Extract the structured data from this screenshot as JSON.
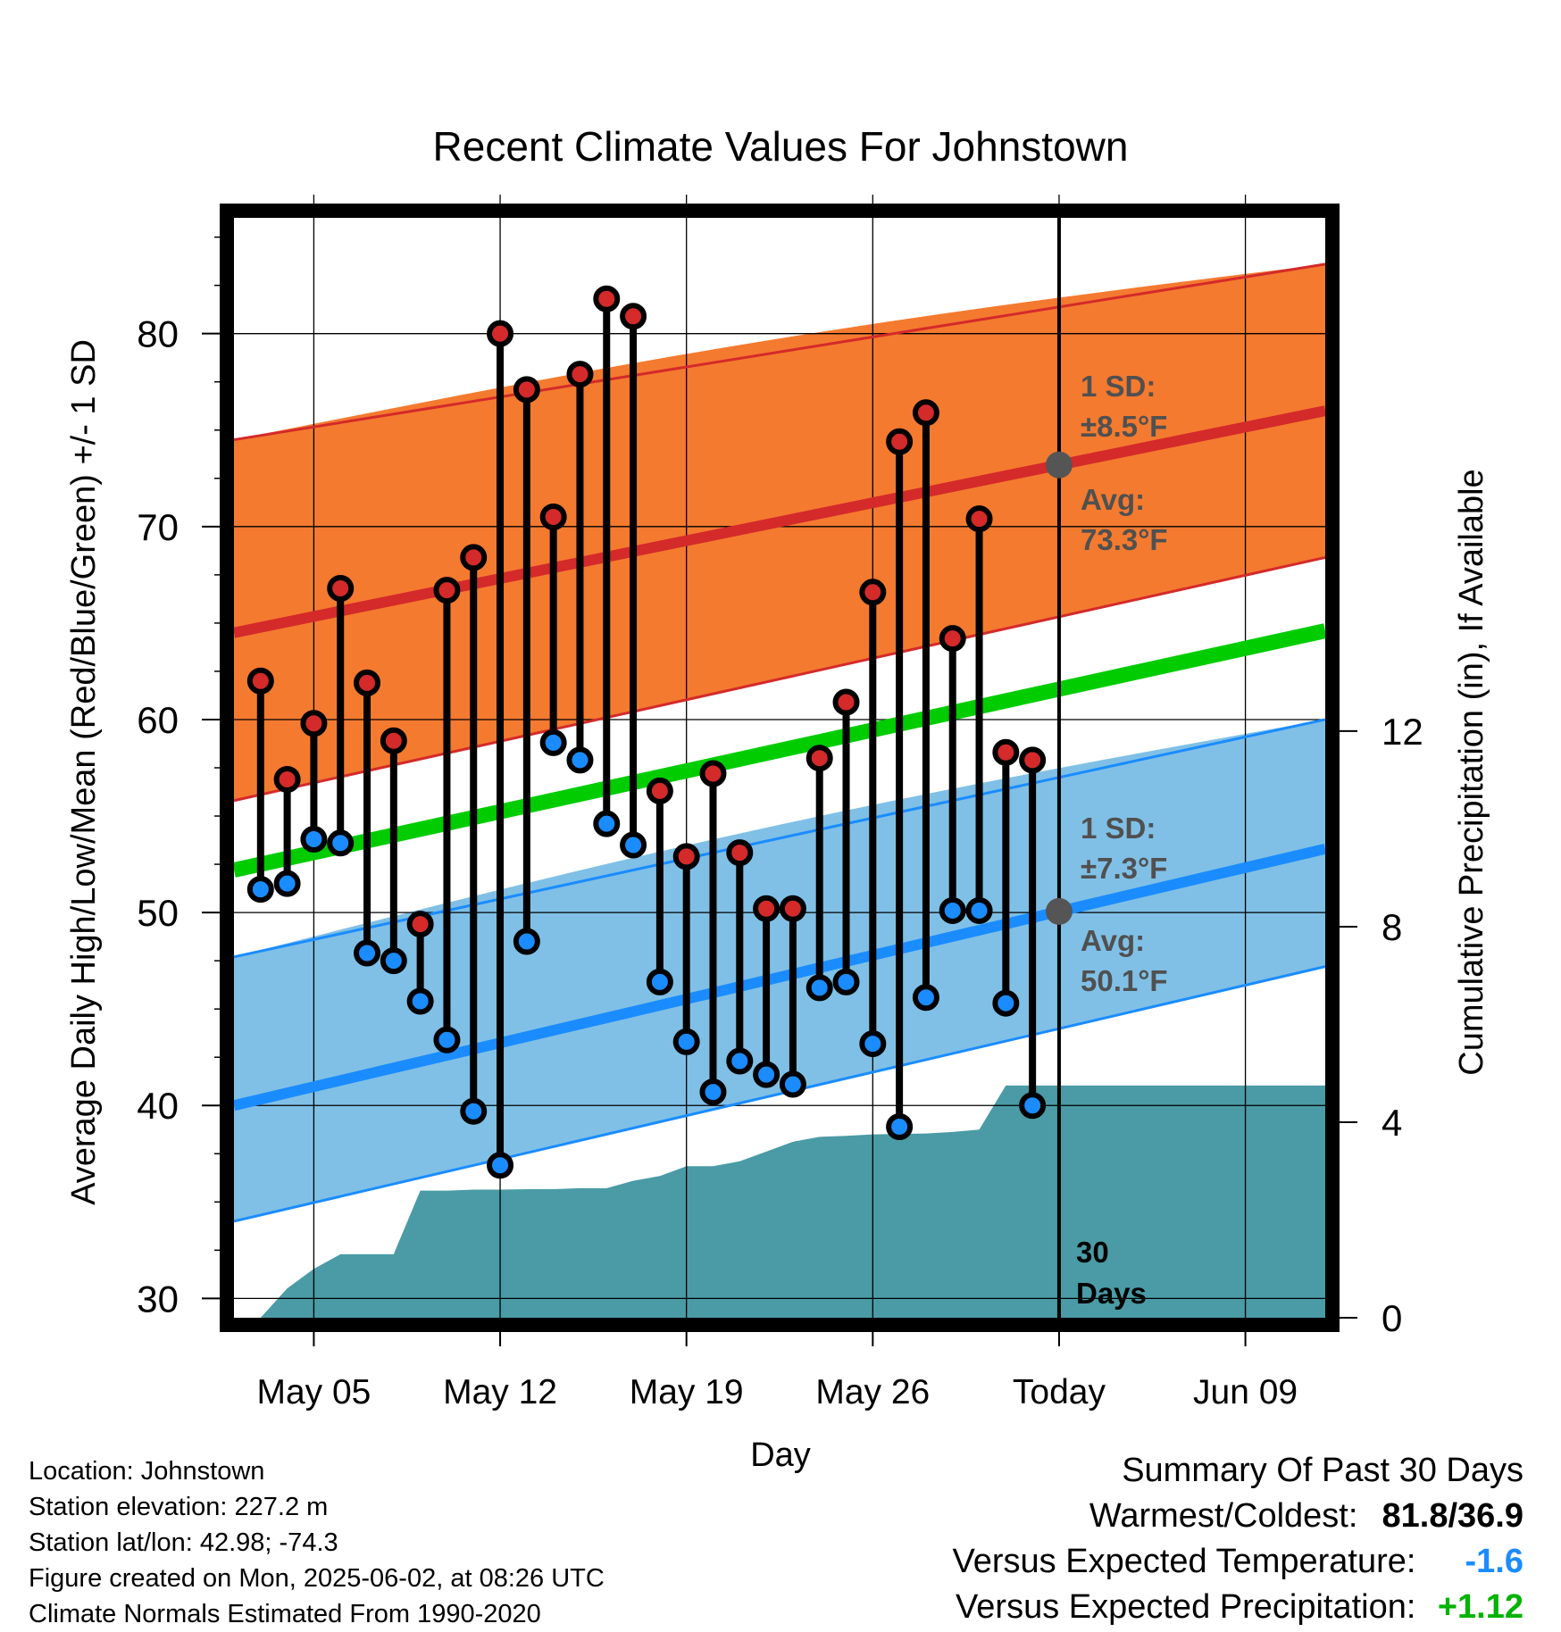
{
  "title": "Recent Climate Values For Johnstown",
  "y_axis_left_label": "Average Daily High/Low/Mean (Red/Blue/Green) +/- 1 SD",
  "y_axis_right_label": "Cumulative Precipitation (in), If Available",
  "x_axis_label": "Day",
  "annotations": {
    "high_sd_line1": "1 SD:",
    "high_sd_line2": "±8.5°F",
    "high_avg_line1": "Avg:",
    "high_avg_line2": "73.3°F",
    "low_sd_line1": "1 SD:",
    "low_sd_line2": "±7.3°F",
    "low_avg_line1": "Avg:",
    "low_avg_line2": "50.1°F",
    "days_line1": "30",
    "days_line2": "Days"
  },
  "footer_left": {
    "location": "Location: Johnstown",
    "elevation": "Station elevation: 227.2 m",
    "latlon": "Station lat/lon: 42.98; -74.3",
    "created": "Figure created on Mon, 2025-06-02, at 08:26 UTC",
    "normals": "Climate Normals Estimated From 1990-2020"
  },
  "footer_right": {
    "heading": "Summary Of Past 30 Days",
    "warm_cold_label": "Warmest/Coldest:",
    "warm_cold_value": "81.8/36.9",
    "temp_label": "Versus Expected Temperature:",
    "temp_value": "-1.6",
    "precip_label": "Versus Expected Precipitation:",
    "precip_value": "+1.12"
  },
  "colors": {
    "high_band": "#f47a2f",
    "high_line": "#d42a2a",
    "low_band": "#80c0e6",
    "low_line": "#1a8cff",
    "mean_line": "#00cc00",
    "precip": "#4a9ba5",
    "marker_high": "#d42a2a",
    "marker_low": "#1a8cff",
    "annotation_text": "#505050"
  },
  "chart_data": {
    "type": "line",
    "x_ticks": [
      "May 05",
      "May 12",
      "May 19",
      "May 26",
      "Today",
      "Jun 09"
    ],
    "y_left_ticks": [
      30,
      40,
      50,
      60,
      70,
      80
    ],
    "y_right_ticks": [
      0,
      4,
      8,
      12
    ],
    "y_left_range": [
      29,
      86
    ],
    "y_right_range": [
      0,
      22.5
    ],
    "x_range": [
      "2025-05-02",
      "2025-06-12"
    ],
    "today": "2025-06-02",
    "normals": {
      "dates": [
        "2025-05-02",
        "2025-06-12"
      ],
      "avg_high": [
        64.5,
        76.0
      ],
      "high_sd_upper": [
        74.5,
        83.6
      ],
      "high_sd_lower": [
        55.8,
        68.4
      ],
      "avg_low": [
        40.0,
        53.3
      ],
      "low_sd_upper": [
        47.7,
        60.0
      ],
      "low_sd_lower": [
        34.0,
        47.2
      ],
      "avg_mean": [
        52.2,
        64.6
      ]
    },
    "daily": {
      "dates": [
        "2025-05-03",
        "2025-05-04",
        "2025-05-05",
        "2025-05-06",
        "2025-05-07",
        "2025-05-08",
        "2025-05-09",
        "2025-05-10",
        "2025-05-11",
        "2025-05-12",
        "2025-05-13",
        "2025-05-14",
        "2025-05-15",
        "2025-05-16",
        "2025-05-17",
        "2025-05-18",
        "2025-05-19",
        "2025-05-20",
        "2025-05-21",
        "2025-05-22",
        "2025-05-23",
        "2025-05-24",
        "2025-05-25",
        "2025-05-26",
        "2025-05-27",
        "2025-05-28",
        "2025-05-29",
        "2025-05-30",
        "2025-05-31",
        "2025-06-01"
      ],
      "highs": [
        62.0,
        56.9,
        59.8,
        66.8,
        61.9,
        58.9,
        49.4,
        66.7,
        68.4,
        80.0,
        77.1,
        70.5,
        77.9,
        81.8,
        80.9,
        56.3,
        52.9,
        57.2,
        53.1,
        50.2,
        50.2,
        58.0,
        60.9,
        66.6,
        74.4,
        75.9,
        64.2,
        70.4,
        58.3,
        57.9
      ],
      "lows": [
        51.2,
        51.5,
        53.8,
        53.6,
        47.9,
        47.5,
        45.4,
        43.4,
        39.7,
        36.9,
        48.5,
        58.8,
        57.9,
        54.6,
        53.5,
        46.4,
        43.3,
        40.7,
        42.3,
        41.6,
        41.1,
        46.1,
        46.4,
        43.2,
        38.9,
        45.6,
        50.1,
        50.1,
        45.3,
        40.0
      ]
    },
    "cumulative_precip": {
      "dates": [
        "2025-05-02",
        "2025-05-03",
        "2025-05-04",
        "2025-05-05",
        "2025-05-06",
        "2025-05-07",
        "2025-05-08",
        "2025-05-09",
        "2025-05-10",
        "2025-05-11",
        "2025-05-12",
        "2025-05-13",
        "2025-05-14",
        "2025-05-15",
        "2025-05-16",
        "2025-05-17",
        "2025-05-18",
        "2025-05-19",
        "2025-05-20",
        "2025-05-21",
        "2025-05-22",
        "2025-05-23",
        "2025-05-24",
        "2025-05-25",
        "2025-05-26",
        "2025-05-27",
        "2025-05-28",
        "2025-05-29",
        "2025-05-30",
        "2025-05-31",
        "2025-06-01",
        "2025-06-12"
      ],
      "values": [
        0.0,
        0.0,
        0.6,
        1.0,
        1.3,
        1.3,
        1.3,
        2.6,
        2.6,
        2.62,
        2.62,
        2.63,
        2.63,
        2.65,
        2.65,
        2.8,
        2.9,
        3.1,
        3.1,
        3.2,
        3.4,
        3.6,
        3.7,
        3.72,
        3.75,
        3.76,
        3.77,
        3.8,
        3.85,
        4.75,
        4.75,
        4.75
      ]
    }
  }
}
